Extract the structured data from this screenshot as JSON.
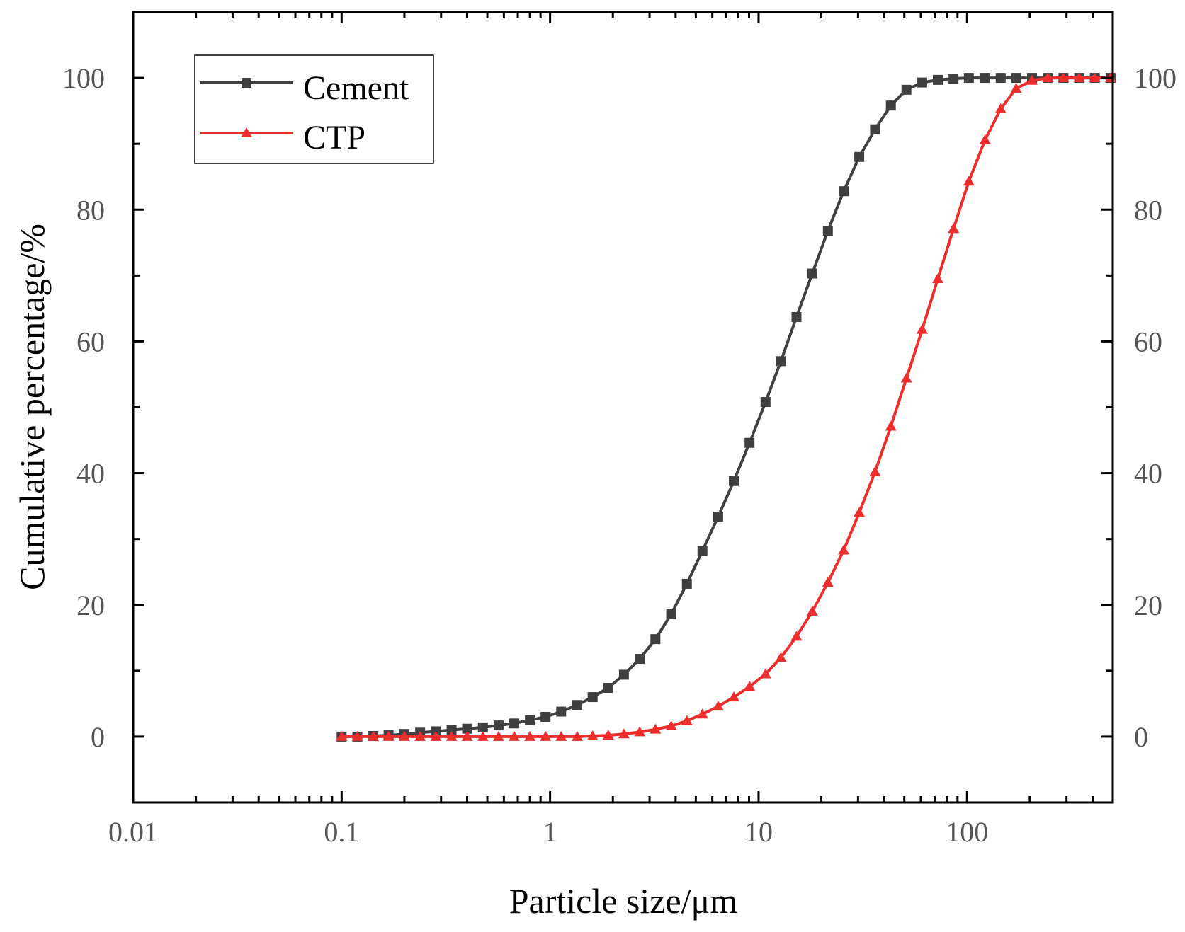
{
  "chart_data": {
    "type": "line",
    "x_scale": "log",
    "xlabel": "Particle size/μm",
    "ylabel": "Cumulative percentage/%",
    "xlim": [
      0.01,
      500
    ],
    "ylim": [
      -10,
      110
    ],
    "x_ticks": [
      0.01,
      0.1,
      1,
      10,
      100
    ],
    "x_tick_labels": [
      "0.01",
      "0.1",
      "1",
      "10",
      "100"
    ],
    "y_ticks": [
      0,
      20,
      40,
      60,
      80,
      100
    ],
    "y_tick_labels": [
      "0",
      "20",
      "40",
      "60",
      "80",
      "100"
    ],
    "legend_position": "top-left",
    "series": [
      {
        "name": "Cement",
        "color": "#404040",
        "marker": "square",
        "x": [
          0.1,
          0.119,
          0.142,
          0.168,
          0.2,
          0.238,
          0.283,
          0.337,
          0.4,
          0.476,
          0.566,
          0.673,
          0.8,
          0.951,
          1.13,
          1.35,
          1.6,
          1.9,
          2.26,
          2.69,
          3.2,
          3.81,
          4.53,
          5.38,
          6.4,
          7.61,
          9.05,
          10.8,
          12.8,
          15.2,
          18.1,
          21.5,
          25.6,
          30.4,
          36.2,
          43.1,
          51.2,
          60.9,
          72.4,
          86.1,
          102,
          122,
          145,
          172,
          205,
          244,
          290,
          345,
          410,
          488
        ],
        "y": [
          0,
          0,
          0.1,
          0.2,
          0.4,
          0.6,
          0.8,
          1.0,
          1.2,
          1.4,
          1.7,
          2.0,
          2.5,
          3.0,
          3.8,
          4.8,
          6.0,
          7.4,
          9.4,
          11.8,
          14.8,
          18.6,
          23.2,
          28.2,
          33.4,
          38.8,
          44.6,
          50.8,
          57.0,
          63.7,
          70.3,
          76.8,
          82.8,
          88.0,
          92.2,
          95.8,
          98.2,
          99.3,
          99.7,
          99.9,
          100,
          100,
          100,
          100,
          100,
          100,
          100,
          100,
          100,
          100
        ]
      },
      {
        "name": "CTP",
        "color": "#ee2d2d",
        "marker": "triangle",
        "x": [
          0.1,
          0.119,
          0.142,
          0.168,
          0.2,
          0.238,
          0.283,
          0.337,
          0.4,
          0.476,
          0.566,
          0.673,
          0.8,
          0.951,
          1.13,
          1.35,
          1.6,
          1.9,
          2.26,
          2.69,
          3.2,
          3.81,
          4.53,
          5.38,
          6.4,
          7.61,
          9.05,
          10.8,
          12.8,
          15.2,
          18.1,
          21.5,
          25.6,
          30.4,
          36.2,
          43.1,
          51.2,
          60.9,
          72.4,
          86.1,
          102,
          122,
          145,
          172,
          205,
          244,
          290,
          345,
          410,
          488
        ],
        "y": [
          0,
          0,
          0,
          0,
          0,
          0,
          0,
          0,
          0,
          0,
          0,
          0,
          0,
          0,
          0,
          0,
          0.1,
          0.2,
          0.4,
          0.7,
          1.1,
          1.6,
          2.4,
          3.4,
          4.6,
          6.0,
          7.6,
          9.5,
          12.0,
          15.2,
          19.0,
          23.4,
          28.3,
          34.0,
          40.2,
          47.1,
          54.4,
          61.8,
          69.5,
          77.1,
          84.3,
          90.6,
          95.3,
          98.4,
          99.6,
          100,
          100,
          100,
          100,
          100
        ]
      }
    ]
  }
}
